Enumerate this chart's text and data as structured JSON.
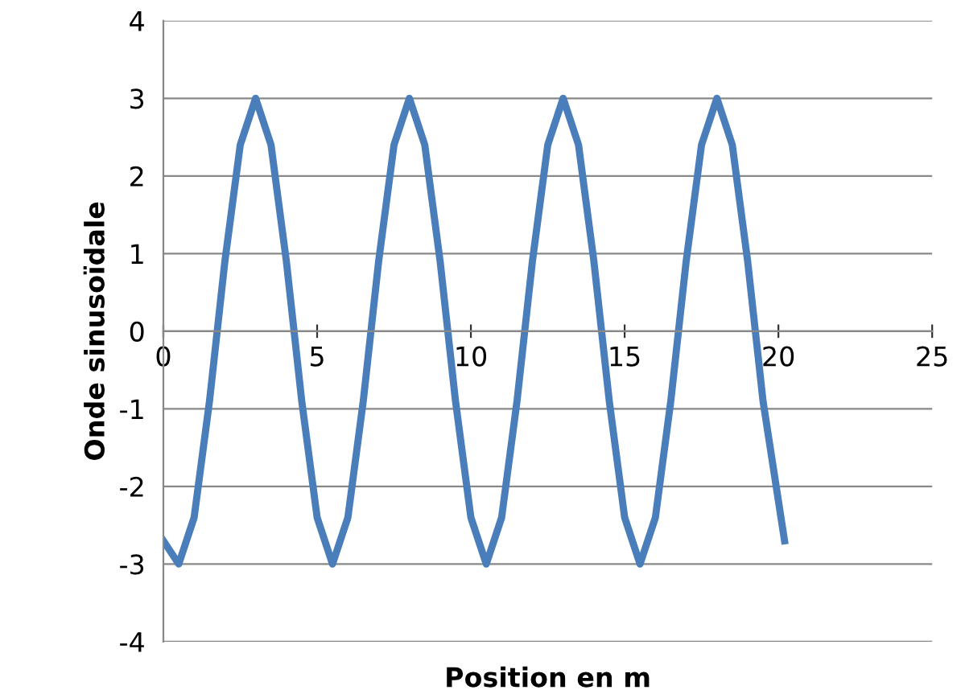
{
  "chart_data": {
    "type": "line",
    "xlabel": "Position en m",
    "ylabel": "Onde sinusoïdale",
    "x": [
      0,
      0.5,
      1,
      1.5,
      2,
      2.5,
      3,
      3.5,
      4,
      4.5,
      5,
      5.5,
      6,
      6.5,
      7,
      7.5,
      8,
      8.5,
      9,
      9.5,
      10,
      10.5,
      11,
      11.5,
      12,
      12.5,
      13,
      13.5,
      14,
      14.5,
      15,
      15.5,
      16,
      16.5,
      17,
      17.5,
      18,
      18.5,
      19,
      19.5,
      20.2
    ],
    "series": [
      {
        "color": "#4a7ebb",
        "values": [
          -2.7,
          -3,
          -2.4,
          -0.9,
          0.9,
          2.4,
          3,
          2.4,
          0.9,
          -0.9,
          -2.4,
          -3,
          -2.4,
          -0.9,
          0.9,
          2.4,
          3,
          2.4,
          0.9,
          -0.9,
          -2.4,
          -3,
          -2.4,
          -0.9,
          0.9,
          2.4,
          3,
          2.4,
          0.9,
          -0.9,
          -2.4,
          -3,
          -2.4,
          -0.9,
          0.9,
          2.4,
          3,
          2.4,
          0.9,
          -0.9,
          -2.7
        ]
      }
    ],
    "xlim": [
      0,
      25
    ],
    "xticks": [
      0,
      5,
      10,
      15,
      20,
      25
    ],
    "ylim": [
      -4,
      4
    ],
    "yticks": [
      -4,
      -3,
      -2,
      -1,
      0,
      1,
      2,
      3,
      4
    ],
    "grid": "y",
    "marker": "none",
    "line_style": "solid"
  }
}
